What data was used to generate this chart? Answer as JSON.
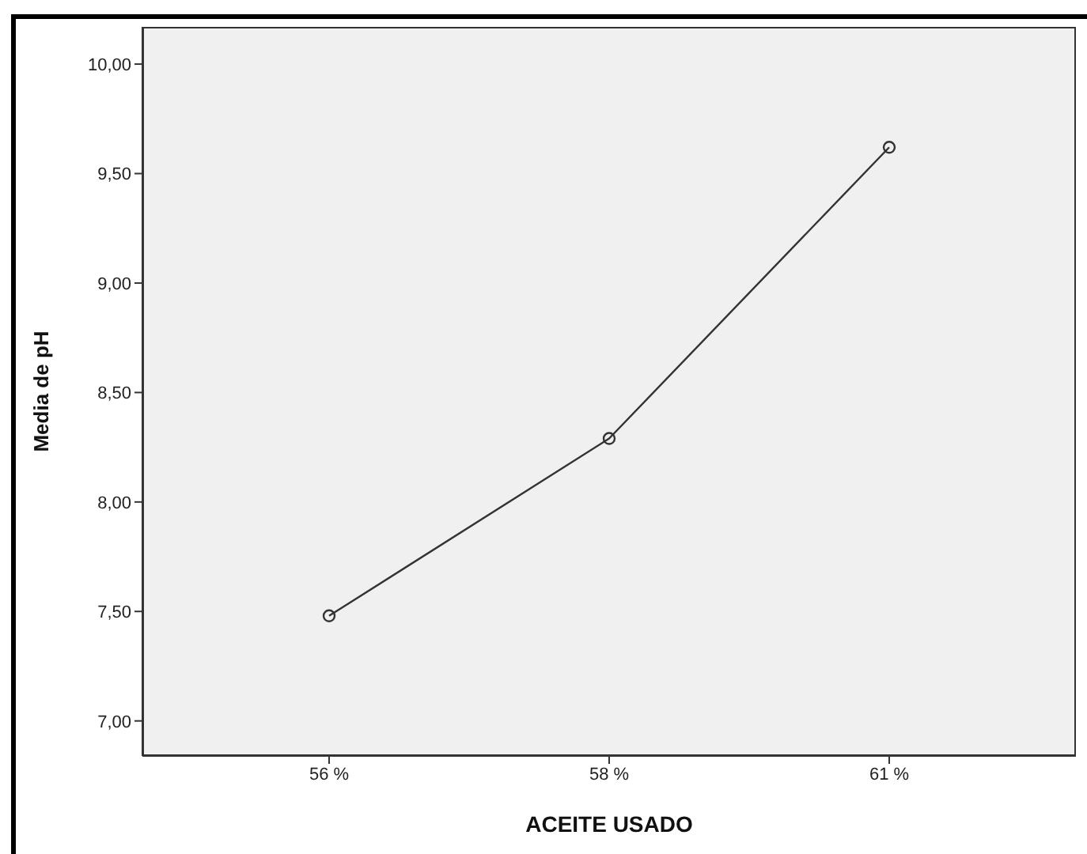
{
  "chart_data": {
    "type": "line",
    "xlabel": "ACEITE USADO",
    "ylabel": "Media de pH",
    "categories": [
      "56 %",
      "58 %",
      "61 %"
    ],
    "series": [
      {
        "color": "#333333",
        "values": [
          7.48,
          8.29,
          9.62
        ]
      }
    ],
    "ylim": [
      6.84,
      10.17
    ],
    "yticks": [
      {
        "value": 7,
        "label": "7,00"
      },
      {
        "value": 7.5,
        "label": "7,50"
      },
      {
        "value": 8,
        "label": "8,00"
      },
      {
        "value": 8.5,
        "label": "8,50"
      },
      {
        "value": 9,
        "label": "9,00"
      },
      {
        "value": 9.5,
        "label": "9,50"
      },
      {
        "value": 10,
        "label": "10,00"
      }
    ],
    "marker": "circle",
    "line_style": "solid",
    "grid": false,
    "legend": false
  }
}
